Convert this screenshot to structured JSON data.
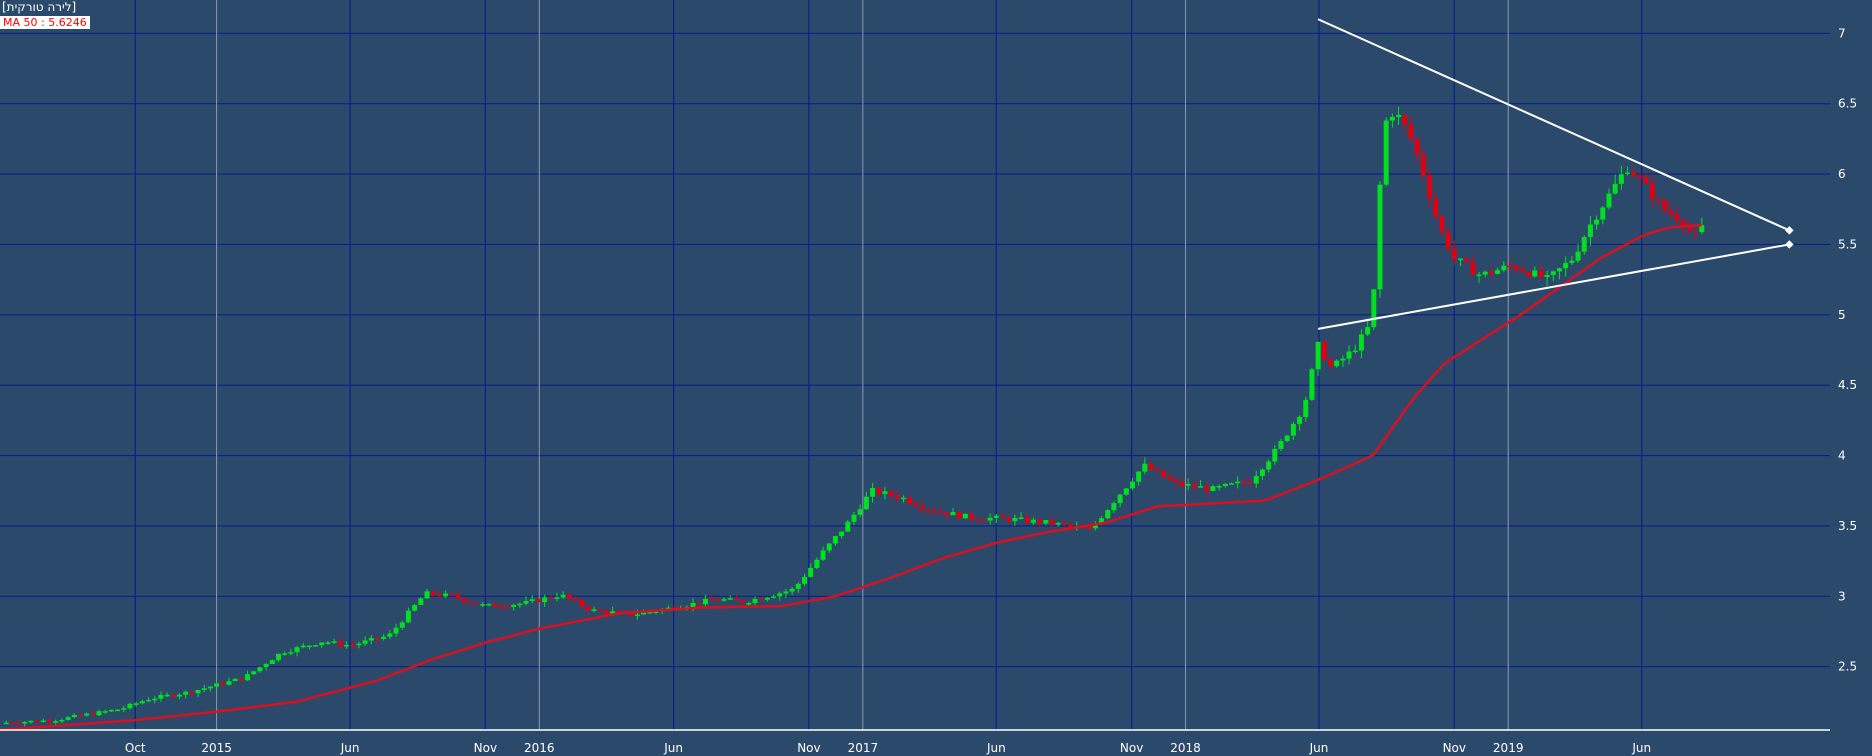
{
  "legend": {
    "title": "[לירה טורקית]",
    "ma_label": "MA 50 : 5.6246"
  },
  "colors": {
    "background": "#2b4a6b",
    "grid_major": "#0a1f8a",
    "grid_year": "#8a9aac",
    "up": "#00e020",
    "down": "#e00010",
    "ma": "#d81020",
    "trendline": "#ffffff"
  },
  "chart_data": {
    "type": "candlestick",
    "series_name": "MA 50",
    "y_ticks": [
      2.5,
      3,
      3.5,
      4,
      4.5,
      5,
      5.5,
      6,
      6.5,
      7
    ],
    "y_tick_labels": [
      "2.5",
      "3",
      "3.5",
      "4",
      "4.5",
      "5",
      "5.5",
      "6",
      "6.5",
      "7"
    ],
    "ylim": [
      2.05,
      7.18
    ],
    "xlim": [
      "2014-05-01",
      "2019-12-31"
    ],
    "x_ticks": [
      {
        "label": "Oct",
        "date": "2014-10-01",
        "year_line": false
      },
      {
        "label": "2015",
        "date": "2015-01-01",
        "year_line": true
      },
      {
        "label": "Jun",
        "date": "2015-06-01",
        "year_line": false
      },
      {
        "label": "Nov",
        "date": "2015-11-01",
        "year_line": false
      },
      {
        "label": "2016",
        "date": "2016-01-01",
        "year_line": true
      },
      {
        "label": "Jun",
        "date": "2016-06-01",
        "year_line": false
      },
      {
        "label": "Nov",
        "date": "2016-11-01",
        "year_line": false
      },
      {
        "label": "2017",
        "date": "2017-01-01",
        "year_line": true
      },
      {
        "label": "Jun",
        "date": "2017-06-01",
        "year_line": false
      },
      {
        "label": "Nov",
        "date": "2017-11-01",
        "year_line": false
      },
      {
        "label": "2018",
        "date": "2018-01-01",
        "year_line": true
      },
      {
        "label": "Jun",
        "date": "2018-06-01",
        "year_line": false
      },
      {
        "label": "Nov",
        "date": "2018-11-01",
        "year_line": false
      },
      {
        "label": "2019",
        "date": "2019-01-01",
        "year_line": true
      },
      {
        "label": "Jun",
        "date": "2019-06-01",
        "year_line": false
      }
    ],
    "close_anchors": [
      [
        "2014-05-01",
        2.1
      ],
      [
        "2014-07-01",
        2.12
      ],
      [
        "2014-09-15",
        2.2
      ],
      [
        "2014-10-15",
        2.27
      ],
      [
        "2014-12-01",
        2.32
      ],
      [
        "2015-02-01",
        2.42
      ],
      [
        "2015-03-15",
        2.6
      ],
      [
        "2015-05-01",
        2.68
      ],
      [
        "2015-06-01",
        2.65
      ],
      [
        "2015-07-15",
        2.72
      ],
      [
        "2015-08-25",
        3.02
      ],
      [
        "2015-09-25",
        3.0
      ],
      [
        "2015-11-01",
        2.93
      ],
      [
        "2015-12-15",
        2.95
      ],
      [
        "2016-01-25",
        3.01
      ],
      [
        "2016-03-01",
        2.9
      ],
      [
        "2016-04-15",
        2.87
      ],
      [
        "2016-06-01",
        2.92
      ],
      [
        "2016-07-20",
        2.98
      ],
      [
        "2016-08-20",
        2.96
      ],
      [
        "2016-10-15",
        3.05
      ],
      [
        "2016-11-15",
        3.3
      ],
      [
        "2016-12-15",
        3.52
      ],
      [
        "2017-01-11",
        3.75
      ],
      [
        "2017-02-15",
        3.7
      ],
      [
        "2017-03-15",
        3.62
      ],
      [
        "2017-05-01",
        3.56
      ],
      [
        "2017-06-15",
        3.55
      ],
      [
        "2017-08-01",
        3.52
      ],
      [
        "2017-09-15",
        3.47
      ],
      [
        "2017-10-15",
        3.7
      ],
      [
        "2017-11-15",
        3.93
      ],
      [
        "2017-12-20",
        3.8
      ],
      [
        "2018-02-01",
        3.76
      ],
      [
        "2018-03-15",
        3.82
      ],
      [
        "2018-04-15",
        4.05
      ],
      [
        "2018-05-15",
        4.35
      ],
      [
        "2018-05-31",
        4.78
      ],
      [
        "2018-06-15",
        4.62
      ],
      [
        "2018-07-10",
        4.75
      ],
      [
        "2018-07-31",
        4.95
      ],
      [
        "2018-08-13",
        6.35
      ],
      [
        "2018-08-25",
        6.45
      ],
      [
        "2018-09-10",
        6.3
      ],
      [
        "2018-09-25",
        6.05
      ],
      [
        "2018-10-15",
        5.62
      ],
      [
        "2018-11-01",
        5.4
      ],
      [
        "2018-12-01",
        5.28
      ],
      [
        "2019-01-05",
        5.35
      ],
      [
        "2019-02-15",
        5.25
      ],
      [
        "2019-03-15",
        5.4
      ],
      [
        "2019-03-31",
        5.6
      ],
      [
        "2019-04-25",
        5.85
      ],
      [
        "2019-05-15",
        6.05
      ],
      [
        "2019-06-01",
        5.95
      ],
      [
        "2019-06-25",
        5.75
      ],
      [
        "2019-07-15",
        5.68
      ],
      [
        "2019-07-31",
        5.55
      ],
      [
        "2019-08-12",
        5.65
      ]
    ],
    "ma_anchors": [
      [
        "2014-05-01",
        2.05
      ],
      [
        "2014-10-01",
        2.12
      ],
      [
        "2015-01-01",
        2.18
      ],
      [
        "2015-04-01",
        2.25
      ],
      [
        "2015-07-01",
        2.4
      ],
      [
        "2015-09-01",
        2.55
      ],
      [
        "2015-11-01",
        2.67
      ],
      [
        "2016-01-01",
        2.77
      ],
      [
        "2016-04-01",
        2.88
      ],
      [
        "2016-07-01",
        2.92
      ],
      [
        "2016-10-01",
        2.93
      ],
      [
        "2016-12-01",
        3.0
      ],
      [
        "2017-02-01",
        3.13
      ],
      [
        "2017-04-01",
        3.27
      ],
      [
        "2017-06-01",
        3.38
      ],
      [
        "2017-08-01",
        3.46
      ],
      [
        "2017-10-01",
        3.52
      ],
      [
        "2017-12-01",
        3.64
      ],
      [
        "2018-02-01",
        3.66
      ],
      [
        "2018-04-01",
        3.68
      ],
      [
        "2018-06-01",
        3.83
      ],
      [
        "2018-08-01",
        4.0
      ],
      [
        "2018-09-15",
        4.4
      ],
      [
        "2018-10-20",
        4.65
      ],
      [
        "2018-12-01",
        4.82
      ],
      [
        "2019-01-15",
        5.0
      ],
      [
        "2019-03-01",
        5.2
      ],
      [
        "2019-04-15",
        5.4
      ],
      [
        "2019-06-01",
        5.56
      ],
      [
        "2019-07-01",
        5.62
      ],
      [
        "2019-08-12",
        5.64
      ]
    ],
    "trendlines": [
      {
        "start": [
          "2018-05-31",
          7.1
        ],
        "end": [
          "2019-11-15",
          5.6
        ]
      },
      {
        "start": [
          "2018-05-31",
          4.9
        ],
        "end": [
          "2019-11-15",
          5.5
        ]
      }
    ]
  }
}
